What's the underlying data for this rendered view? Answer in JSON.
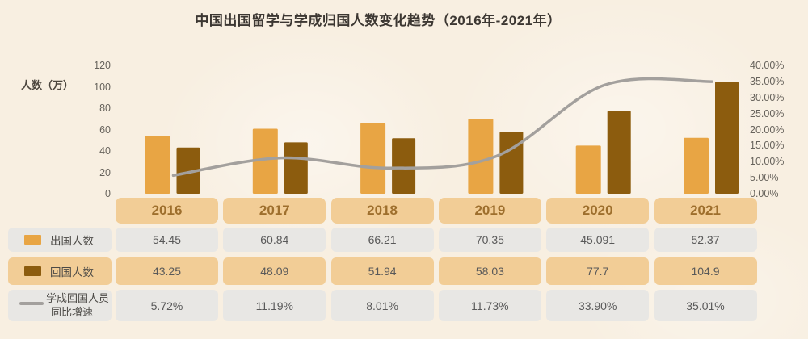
{
  "title": "中国出国留学与学成归国人数变化趋势（2016年-2021年）",
  "y_axis": {
    "label": "人数（万）",
    "tick_values": [
      120,
      100,
      80,
      60,
      40,
      20,
      0
    ],
    "tick_labels": [
      "120",
      "100",
      "80",
      "60",
      "40",
      "20",
      "0"
    ]
  },
  "y2_axis": {
    "tick_values": [
      40,
      35,
      30,
      25,
      20,
      15,
      10,
      5,
      0
    ],
    "tick_labels": [
      "40.00%",
      "35.00%",
      "30.00%",
      "25.00%",
      "20.00%",
      "15.00%",
      "10.00%",
      "5.00%",
      "0.00%"
    ]
  },
  "chart_data": {
    "type": "combo-bar-line",
    "title": "中国出国留学与学成归国人数变化趋势（2016年-2021年）",
    "categories": [
      "2016",
      "2017",
      "2018",
      "2019",
      "2020",
      "2021"
    ],
    "series": [
      {
        "name": "出国人数",
        "type": "bar",
        "color": "#E8A544",
        "axis": "left",
        "values": [
          54.45,
          60.84,
          66.21,
          70.35,
          45.091,
          52.37
        ]
      },
      {
        "name": "回国人数",
        "type": "bar",
        "color": "#8C5C0E",
        "axis": "left",
        "values": [
          43.25,
          48.09,
          51.94,
          58.03,
          77.7,
          104.9
        ]
      },
      {
        "name": "学成回国人员同比增速",
        "type": "line",
        "color": "#A3A09D",
        "axis": "right",
        "values": [
          5.72,
          11.19,
          8.01,
          11.73,
          33.9,
          35.01
        ]
      }
    ],
    "ylabel": "人数（万）",
    "ylim": [
      0,
      120
    ],
    "y2lim": [
      0,
      40
    ],
    "grid": false,
    "legend_position": "bottom-left"
  },
  "legend": [
    {
      "label": "出国人数"
    },
    {
      "label": "回国人数"
    },
    {
      "label_line1": "学成回国人员",
      "label_line2": "同比增速"
    }
  ],
  "table": {
    "years": [
      "2016",
      "2017",
      "2018",
      "2019",
      "2020",
      "2021"
    ],
    "rows": [
      {
        "name": "出国人数",
        "style": "gray",
        "values": [
          "54.45",
          "60.84",
          "66.21",
          "70.35",
          "45.091",
          "52.37"
        ]
      },
      {
        "name": "回国人数",
        "style": "tan",
        "values": [
          "43.25",
          "48.09",
          "51.94",
          "58.03",
          "77.7",
          "104.9"
        ]
      },
      {
        "name": "学成回国人员同比增速",
        "style": "gray",
        "values": [
          "5.72%",
          "11.19%",
          "8.01%",
          "11.73%",
          "33.90%",
          "35.01%"
        ]
      }
    ]
  },
  "colors": {
    "background": "#F8EFE1",
    "bar_abroad": "#E8A544",
    "bar_return": "#8C5C0E",
    "growth_line": "#A3A09D",
    "cell_tan": "#F2CD96",
    "cell_gray": "#E8E7E4",
    "year_text": "#9E6F2D",
    "value_text": "#595959",
    "title_text": "#3C3732"
  }
}
